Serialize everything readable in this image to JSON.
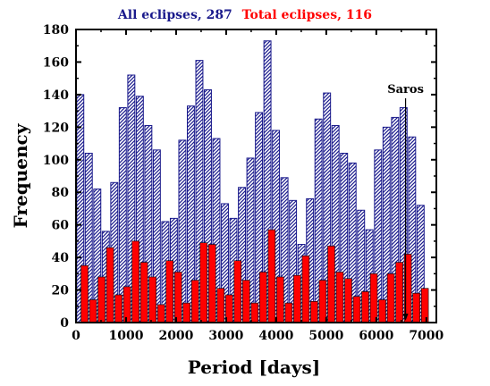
{
  "chart_data": {
    "type": "bar",
    "title_parts": [
      {
        "text": "All eclipses, 287",
        "color": "#1a1a8c"
      },
      {
        "text": "Total eclipses, 116",
        "color": "#ff0000"
      }
    ],
    "xlabel": "Period [days]",
    "ylabel": "Frequency",
    "xlim": [
      0,
      7200
    ],
    "ylim": [
      0,
      180
    ],
    "xticks": [
      0,
      1000,
      2000,
      3000,
      4000,
      5000,
      6000,
      7000
    ],
    "yticks": [
      0,
      20,
      40,
      60,
      80,
      100,
      120,
      140,
      160,
      180
    ],
    "bin_width": 170,
    "series": [
      {
        "name": "All eclipses, 287",
        "style": "hatched",
        "color": "#1a1a8c",
        "x": [
          85,
          255,
          425,
          595,
          765,
          935,
          1105,
          1275,
          1445,
          1615,
          1785,
          1955,
          2125,
          2295,
          2465,
          2635,
          2805,
          2975,
          3145,
          3315,
          3485,
          3655,
          3825,
          3995,
          4165,
          4335,
          4505,
          4675,
          4845,
          5015,
          5185,
          5355,
          5525,
          5695,
          5865,
          6035,
          6205,
          6375,
          6545,
          6715,
          6885,
          7055
        ],
        "values": [
          140,
          104,
          82,
          56,
          86,
          132,
          152,
          139,
          121,
          106,
          62,
          64,
          112,
          133,
          161,
          143,
          113,
          73,
          64,
          83,
          101,
          129,
          173,
          118,
          89,
          75,
          48,
          76,
          125,
          141,
          121,
          104,
          98,
          69,
          57,
          106,
          120,
          126,
          132,
          114,
          72,
          0
        ]
      },
      {
        "name": "Total eclipses, 116",
        "style": "solid",
        "color": "#ff0000",
        "x": [
          170,
          340,
          510,
          680,
          850,
          1020,
          1190,
          1360,
          1530,
          1700,
          1870,
          2040,
          2210,
          2380,
          2550,
          2720,
          2890,
          3060,
          3230,
          3400,
          3570,
          3740,
          3910,
          4080,
          4250,
          4420,
          4590,
          4760,
          4930,
          5100,
          5270,
          5440,
          5610,
          5780,
          5950,
          6120,
          6290,
          6460,
          6630,
          6800,
          6970,
          7140
        ],
        "values": [
          35,
          14,
          28,
          46,
          17,
          22,
          50,
          37,
          28,
          11,
          38,
          31,
          12,
          26,
          49,
          48,
          21,
          17,
          38,
          26,
          12,
          31,
          57,
          28,
          12,
          29,
          41,
          13,
          26,
          47,
          31,
          27,
          16,
          19,
          30,
          14,
          30,
          37,
          42,
          18,
          21,
          0
        ]
      }
    ],
    "annotations": [
      {
        "text": "Saros",
        "x": 6585,
        "y": 0
      }
    ]
  }
}
